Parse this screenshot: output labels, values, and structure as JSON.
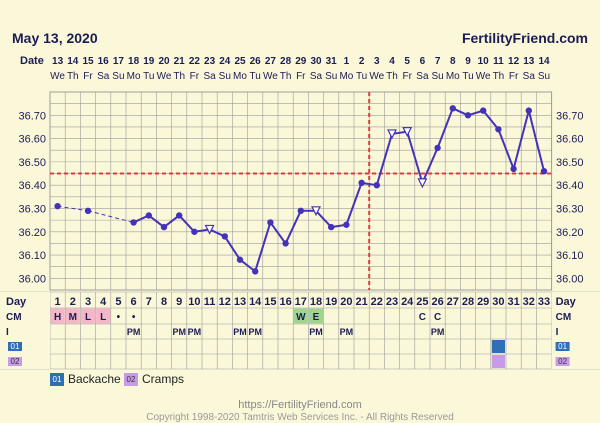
{
  "header": {
    "date": "May 13, 2020",
    "site": "FertilityFriend.com"
  },
  "labels": {
    "date_row": "Date",
    "day_row": "Day",
    "cm_row": "CM",
    "i_row": "I"
  },
  "colors": {
    "line": "#4432b8",
    "coverline": "#d9403a",
    "ovulation": "#d9403a",
    "grid": "#9c9c9c",
    "plot_bg": "#fbf8da"
  },
  "chart_data": {
    "type": "line",
    "title": "",
    "ylim": [
      35.95,
      36.8
    ],
    "yticks": [
      "36.00",
      "36.10",
      "36.20",
      "36.30",
      "36.40",
      "36.50",
      "36.60",
      "36.70"
    ],
    "date_numbers": [
      "13",
      "14",
      "15",
      "16",
      "17",
      "18",
      "19",
      "20",
      "21",
      "22",
      "23",
      "24",
      "25",
      "26",
      "27",
      "28",
      "29",
      "30",
      "31",
      "1",
      "2",
      "3",
      "4",
      "5",
      "6",
      "7",
      "8",
      "9",
      "10",
      "11",
      "12",
      "13",
      "14"
    ],
    "weekdays": [
      "We",
      "Th",
      "Fr",
      "Sa",
      "Su",
      "Mo",
      "Tu",
      "We",
      "Th",
      "Fr",
      "Sa",
      "Su",
      "Mo",
      "Tu",
      "We",
      "Th",
      "Fr",
      "Sa",
      "Su",
      "Mo",
      "Tu",
      "We",
      "Th",
      "Fr",
      "Sa",
      "Su",
      "Mo",
      "Tu",
      "We",
      "Th",
      "Fr",
      "Sa",
      "Su"
    ],
    "cycle_days": [
      "1",
      "2",
      "3",
      "4",
      "5",
      "6",
      "7",
      "8",
      "9",
      "10",
      "11",
      "12",
      "13",
      "14",
      "15",
      "16",
      "17",
      "18",
      "19",
      "20",
      "21",
      "22",
      "23",
      "24",
      "25",
      "26",
      "27",
      "28",
      "29",
      "30",
      "31",
      "32",
      "33"
    ],
    "temps": [
      36.31,
      null,
      36.29,
      null,
      null,
      36.24,
      36.27,
      36.22,
      36.27,
      36.2,
      36.21,
      36.18,
      36.08,
      36.03,
      36.24,
      36.15,
      36.29,
      36.29,
      36.22,
      36.23,
      36.41,
      36.4,
      36.62,
      36.63,
      36.41,
      36.56,
      36.73,
      36.7,
      36.72,
      36.64,
      36.47,
      36.72,
      36.46
    ],
    "open_points": [
      10,
      17,
      22,
      23,
      24
    ],
    "dashed_segments": [
      [
        0,
        2
      ],
      [
        2,
        5
      ]
    ],
    "coverline": 36.45,
    "ovulation_day_index": 21,
    "cm_row": [
      "H",
      "M",
      "L",
      "L",
      "•",
      "•",
      "",
      "",
      "",
      "",
      "",
      "",
      "",
      "",
      "",
      "",
      "W",
      "E",
      "",
      "",
      "",
      "",
      "",
      "",
      "C",
      "C",
      "",
      "",
      "",
      "",
      "",
      "",
      ""
    ],
    "cm_row2": [
      "",
      "",
      "",
      "",
      "",
      "PM",
      "",
      "",
      "PM",
      "PM",
      "",
      "",
      "PM",
      "PM",
      "",
      "",
      "",
      "PM",
      "",
      "PM",
      "",
      "",
      "",
      "",
      "",
      "PM",
      "",
      "",
      "",
      "",
      "",
      "",
      ""
    ],
    "menses_days": [
      0,
      1,
      2,
      3
    ],
    "fertile_days": [
      16,
      17
    ],
    "symptoms": [
      {
        "code": "01",
        "name": "Backache",
        "days": [
          29
        ],
        "color": "#2f6fb5"
      },
      {
        "code": "02",
        "name": "Cramps",
        "days": [
          29
        ],
        "color": "#c89be6"
      }
    ]
  },
  "footer": {
    "url": "https://FertilityFriend.com",
    "copyright": "Copyright 1998-2020 Tamtris Web Services Inc. - All Rights Reserved"
  }
}
